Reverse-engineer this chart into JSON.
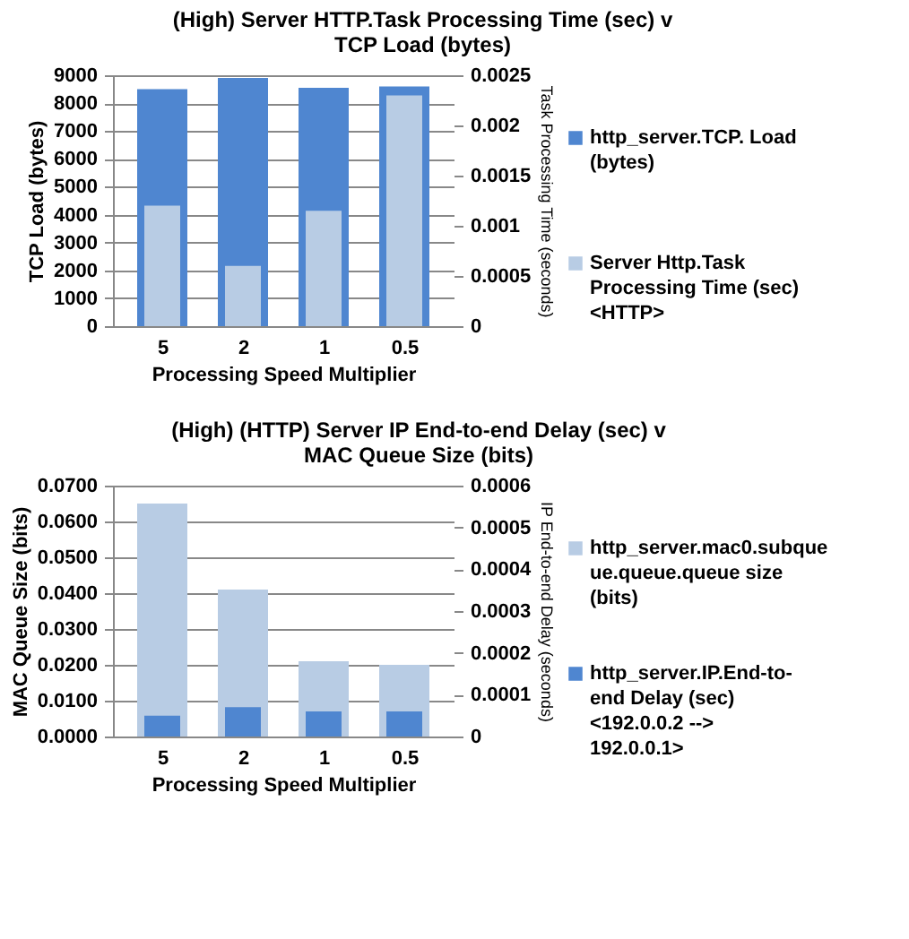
{
  "chart_data": [
    {
      "type": "bar",
      "title": "(High) Server HTTP.Task Processing Time (sec) v TCP Load (bytes)",
      "xlabel": "Processing Speed Multiplier",
      "ylabel": "TCP Load (bytes)",
      "y2label": "Task Processing Time (seconds)",
      "categories": [
        "5",
        "2",
        "1",
        "0.5"
      ],
      "series": [
        {
          "name": "http_server.TCP. Load (bytes)",
          "color": "#4f86d0",
          "values": [
            8500,
            8900,
            8550,
            8600
          ]
        },
        {
          "name": "Server Http.Task Processing Time (sec) <HTTP>",
          "color": "#b8cce4",
          "axis": "y2",
          "values": [
            0.0012,
            0.0006,
            0.00115,
            0.0023
          ]
        }
      ],
      "ylim": [
        0,
        9000
      ],
      "yticks": [
        0,
        1000,
        2000,
        3000,
        4000,
        5000,
        6000,
        7000,
        8000,
        9000
      ],
      "y2lim": [
        0,
        0.0025
      ],
      "y2ticks": [
        0,
        0.0005,
        0.001,
        0.0015,
        0.002,
        0.0025
      ],
      "grid": "y",
      "legend": "right"
    },
    {
      "type": "bar",
      "title": "(High) (HTTP) Server IP End-to-end Delay (sec) v MAC Queue Size (bits)",
      "xlabel": "Processing Speed Multiplier",
      "ylabel": "MAC Queue Size (bits)",
      "y2label": "IP End-to-end Delay (seconds)",
      "categories": [
        "5",
        "2",
        "1",
        "0.5"
      ],
      "series": [
        {
          "name": "http_server.mac0.subqueue.queue.queue size (bits)",
          "color": "#b8cce4",
          "values": [
            0.065,
            0.041,
            0.021,
            0.02
          ]
        },
        {
          "name": "http_server.IP.End-to-end Delay (sec) <192.0.0.2 --> 192.0.0.1>",
          "color": "#4f86d0",
          "axis": "y2",
          "values": [
            5e-05,
            7e-05,
            6e-05,
            6e-05
          ]
        }
      ],
      "ylim": [
        0,
        0.07
      ],
      "yticks": [
        {
          "value": 0,
          "label": "0.0000"
        },
        {
          "value": 0.01,
          "label": "0.0100"
        },
        {
          "value": 0.02,
          "label": "0.0200"
        },
        {
          "value": 0.03,
          "label": "0.0300"
        },
        {
          "value": 0.04,
          "label": "0.0400"
        },
        {
          "value": 0.05,
          "label": "0.0500"
        },
        {
          "value": 0.06,
          "label": "0.0600"
        },
        {
          "value": 0.07,
          "label": "0.0700"
        }
      ],
      "y2lim": [
        0,
        0.0006
      ],
      "y2ticks": [
        0,
        0.0001,
        0.0002,
        0.0003,
        0.0004,
        0.0005,
        0.0006
      ],
      "grid": "y",
      "legend": "right"
    }
  ]
}
